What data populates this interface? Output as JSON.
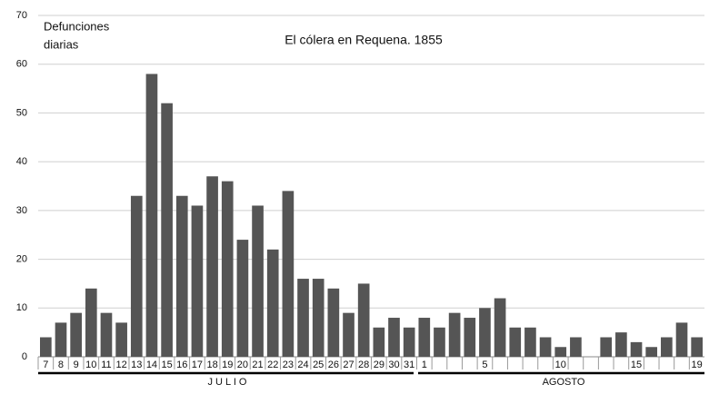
{
  "chart_data": {
    "type": "bar",
    "title": "El cólera en Requena. 1855",
    "ylabel": [
      "Defunciones",
      "diarias"
    ],
    "month_labels": [
      "J U L I O",
      "AGOSTO"
    ],
    "categories": [
      "7",
      "8",
      "9",
      "10",
      "11",
      "12",
      "13",
      "14",
      "15",
      "16",
      "17",
      "18",
      "19",
      "20",
      "21",
      "22",
      "23",
      "24",
      "25",
      "26",
      "27",
      "28",
      "29",
      "30",
      "31",
      "1",
      null,
      null,
      null,
      "5",
      null,
      null,
      null,
      null,
      "10",
      null,
      null,
      null,
      null,
      "15",
      null,
      null,
      null,
      "19"
    ],
    "values": [
      4,
      7,
      9,
      14,
      9,
      7,
      33,
      58,
      52,
      33,
      31,
      37,
      36,
      24,
      31,
      22,
      34,
      16,
      16,
      14,
      9,
      15,
      6,
      8,
      6,
      8,
      6,
      9,
      8,
      10,
      12,
      6,
      6,
      4,
      2,
      4,
      0,
      4,
      5,
      3,
      2,
      4,
      7,
      4
    ],
    "color": "#555555",
    "ylim": [
      0,
      70
    ],
    "yticks": [
      0,
      10,
      20,
      30,
      40,
      50,
      60,
      70
    ],
    "grid": true
  }
}
